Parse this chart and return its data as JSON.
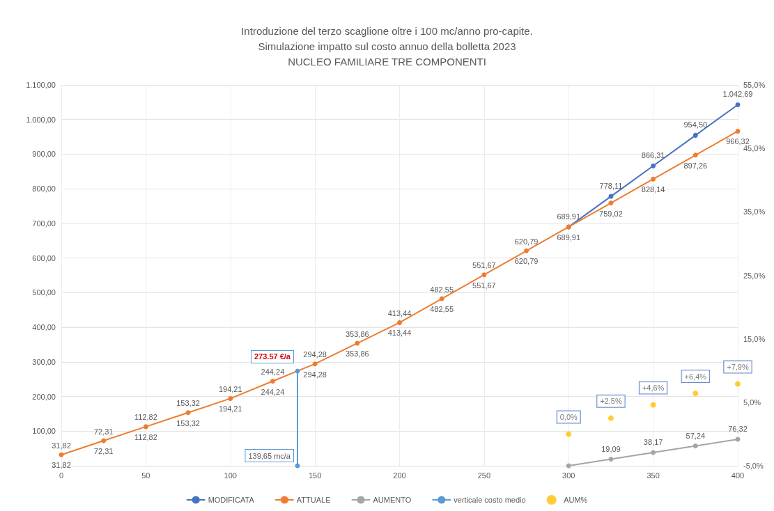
{
  "chart_data": {
    "type": "line",
    "title": "Introduzione del terzo scaglione oltre i 100 mc/anno pro-capite.\nSimulazione impatto sul costo annuo della bolletta 2023\nNUCLEO FAMILIARE TRE COMPONENTI",
    "xlim": [
      0,
      400
    ],
    "xticks": [
      0,
      50,
      100,
      150,
      200,
      250,
      300,
      350,
      400
    ],
    "ylim": [
      0,
      1100
    ],
    "yticks": [
      {
        "value": 0,
        "label": "-"
      },
      {
        "value": 100,
        "label": "100,00"
      },
      {
        "value": 200,
        "label": "200,00"
      },
      {
        "value": 300,
        "label": "300,00"
      },
      {
        "value": 400,
        "label": "400,00"
      },
      {
        "value": 500,
        "label": "500,00"
      },
      {
        "value": 600,
        "label": "600,00"
      },
      {
        "value": 700,
        "label": "700,00"
      },
      {
        "value": 800,
        "label": "800,00"
      },
      {
        "value": 900,
        "label": "900,00"
      },
      {
        "value": 1000,
        "label": "1.000,00"
      },
      {
        "value": 1100,
        "label": "1.100,00"
      }
    ],
    "y2lim": [
      -5,
      55
    ],
    "y2ticks": [
      {
        "value": -5,
        "label": "-5,0%"
      },
      {
        "value": 5,
        "label": "5,0%"
      },
      {
        "value": 15,
        "label": "15,0%"
      },
      {
        "value": 25,
        "label": "25,0%"
      },
      {
        "value": 35,
        "label": "35,0%"
      },
      {
        "value": 45,
        "label": "45,0%"
      },
      {
        "value": 55,
        "label": "55,0%"
      }
    ],
    "grid": true,
    "legend": "bottom",
    "marker": "circle",
    "annotations": [
      {
        "text": "31,82",
        "x": 0,
        "y": 31.82
      },
      {
        "text": "72,31",
        "x": 25,
        "y": 72.31
      },
      {
        "text": "112,82",
        "x": 50,
        "y": 112.82
      },
      {
        "text": "153,32",
        "x": 75,
        "y": 153.32
      },
      {
        "text": "194,21",
        "x": 100,
        "y": 194.21
      },
      {
        "text": "244,24",
        "x": 125,
        "y": 244.24
      },
      {
        "text": "294,28",
        "x": 150,
        "y": 294.28
      },
      {
        "text": "353,86",
        "x": 175,
        "y": 353.86
      },
      {
        "text": "413,44",
        "x": 200,
        "y": 413.44
      },
      {
        "text": "482,55",
        "x": 225,
        "y": 482.55
      },
      {
        "text": "551,67",
        "x": 250,
        "y": 551.67
      },
      {
        "text": "620,79",
        "x": 275,
        "y": 620.79
      },
      {
        "text": "139,65 mc/a",
        "x": 139.65,
        "y": 0
      },
      {
        "text": "273.57 €/a",
        "x": 139.65,
        "y": 273.57
      }
    ],
    "series": [
      {
        "name": "MODIFICATA",
        "color": "#4472c4",
        "x": [
          300,
          325,
          350,
          375,
          400
        ],
        "values": [
          689.91,
          778.11,
          866.31,
          954.5,
          1042.69
        ],
        "value_labels": [
          "689,91",
          "778,11",
          "866,31",
          "954,50",
          "1.042,69"
        ]
      },
      {
        "name": "ATTUALE",
        "color": "#ed7d31",
        "x": [
          0,
          25,
          50,
          75,
          100,
          125,
          150,
          175,
          200,
          225,
          250,
          275,
          300,
          325,
          350,
          375,
          400
        ],
        "values": [
          31.82,
          72.31,
          112.82,
          153.32,
          194.21,
          244.24,
          294.28,
          353.86,
          413.44,
          482.55,
          551.67,
          620.79,
          689.91,
          759.02,
          828.14,
          897.26,
          966.32
        ],
        "value_labels": [
          "31,82",
          "72,31",
          "112,82",
          "153,32",
          "194,21",
          "244,24",
          "294,28",
          "353,86",
          "413,44",
          "482,55",
          "551,67",
          "620,79",
          "689,91",
          "759,02",
          "828,14",
          "897,26",
          "966,32"
        ]
      },
      {
        "name": "AUMENTO",
        "color": "#a5a5a5",
        "x": [
          300,
          325,
          350,
          375,
          400
        ],
        "values": [
          0,
          19.09,
          38.17,
          57.24,
          76.32
        ],
        "value_labels": [
          null,
          "19,09",
          "38,17",
          "57,24",
          "76,32"
        ]
      },
      {
        "name": "verticale costo medio",
        "color": "#5b9bd5",
        "x": [
          139.65,
          139.65
        ],
        "values": [
          0,
          273.57
        ]
      },
      {
        "name": "AUM%",
        "type": "scatter",
        "axis": "y2",
        "color": "#ffc000",
        "x": [
          300,
          325,
          350,
          375,
          400
        ],
        "values": [
          0,
          2.5,
          4.6,
          6.4,
          7.9
        ],
        "value_labels": [
          "0,0%",
          "+2,5%",
          "+4,6%",
          "+6,4%",
          "+7,9%"
        ]
      }
    ]
  }
}
